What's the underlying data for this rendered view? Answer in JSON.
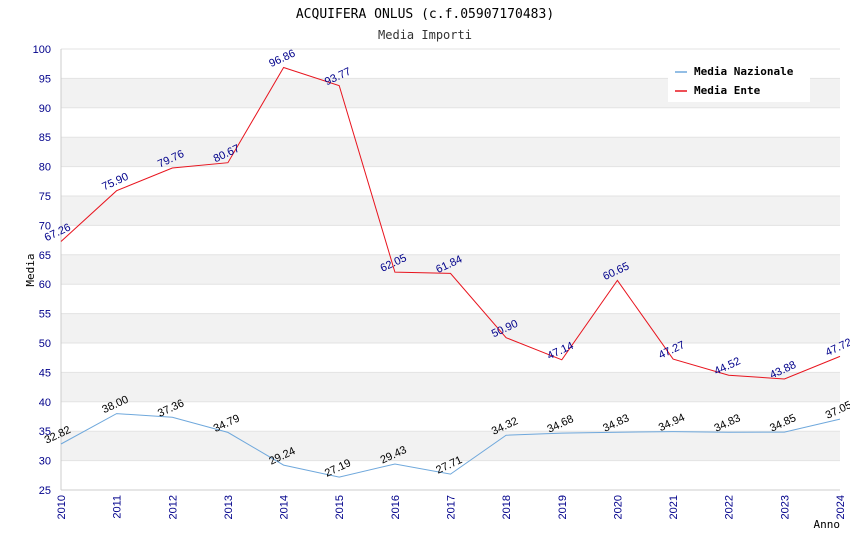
{
  "chart_data": {
    "type": "line",
    "title": "ACQUIFERA ONLUS (c.f.05907170483)",
    "subtitle": "Media Importi",
    "xlabel": "Anno",
    "ylabel": "Media",
    "x": [
      "2010",
      "2011",
      "2012",
      "2013",
      "2014",
      "2015",
      "2016",
      "2017",
      "2018",
      "2019",
      "2020",
      "2021",
      "2022",
      "2023",
      "2024"
    ],
    "ylim": [
      25,
      100
    ],
    "yticks": [
      25,
      30,
      35,
      40,
      45,
      50,
      55,
      60,
      65,
      70,
      75,
      80,
      85,
      90,
      95,
      100
    ],
    "grid": "horizontal bands",
    "legend_position": "top-right",
    "series": [
      {
        "name": "Media Nazionale",
        "color": "#6fa8dc",
        "values": [
          32.82,
          38.0,
          37.36,
          34.79,
          29.24,
          27.19,
          29.43,
          27.71,
          34.32,
          34.68,
          34.83,
          34.94,
          34.83,
          34.85,
          37.05
        ],
        "labels": [
          "32.82",
          "38.00",
          "37.36",
          "34.79",
          "29.24",
          "27.19",
          "29.43",
          "27.71",
          "34.32",
          "34.68",
          "34.83",
          "34.94",
          "34.83",
          "34.85",
          "37.05"
        ]
      },
      {
        "name": "Media Ente",
        "color": "#e8141e",
        "values": [
          67.26,
          75.9,
          79.76,
          80.67,
          96.86,
          93.77,
          62.05,
          61.84,
          50.9,
          47.14,
          60.65,
          47.27,
          44.52,
          43.88,
          47.72
        ],
        "labels": [
          "67.26",
          "75.90",
          "79.76",
          "80.67",
          "96.86",
          "93.77",
          "62.05",
          "61.84",
          "50.90",
          "47.14",
          "60.65",
          "47.27",
          "44.52",
          "43.88",
          "47.72"
        ]
      }
    ]
  }
}
